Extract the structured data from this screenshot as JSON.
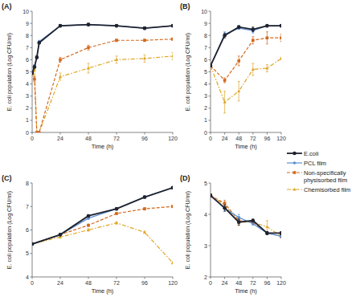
{
  "chart_data": [
    {
      "type": "line",
      "title": "(A)",
      "x_label": "Time (h)",
      "y_label": "E. coli population (Log CFU/ml)",
      "x": [
        0,
        2,
        4,
        6,
        24,
        48,
        72,
        96,
        120
      ],
      "xlim": [
        0,
        120
      ],
      "xticks": [
        0,
        24,
        48,
        72,
        96,
        120
      ],
      "ylim": [
        0,
        10
      ],
      "yticks": [
        0,
        1,
        2,
        3,
        4,
        5,
        6,
        7,
        8,
        9,
        10
      ],
      "grid": false,
      "series": [
        {
          "name": "E.coli",
          "color": "#1f2330",
          "marker": "circle",
          "line_style": "solid",
          "values": [
            4.9,
            5.4,
            6.2,
            7.4,
            8.8,
            8.9,
            8.8,
            8.6,
            8.8
          ],
          "errors": [
            0.1,
            0.1,
            0.1,
            0.1,
            0.1,
            0.1,
            0.1,
            0.1,
            0.1
          ]
        },
        {
          "name": "PCL film",
          "color": "#5b8fd1",
          "marker": "circle",
          "line_style": "solid",
          "values": [
            4.9,
            5.5,
            6.2,
            7.5,
            8.8,
            8.9,
            8.8,
            8.6,
            8.8
          ],
          "errors": [
            0.1,
            0.1,
            0.1,
            0.1,
            0.1,
            0.1,
            0.1,
            0.1,
            0.1
          ]
        },
        {
          "name": "Non-specifically physisorbed film",
          "color": "#d2691e",
          "marker": "square",
          "line_style": "dashed",
          "values": [
            4.9,
            4.4,
            0,
            0,
            6.0,
            7.0,
            7.6,
            7.6,
            7.7
          ],
          "errors": [
            0.1,
            0.2,
            0,
            0,
            0.2,
            0.2,
            0.1,
            0.1,
            0.1
          ]
        },
        {
          "name": "Chemisorbed film",
          "color": "#e0a526",
          "marker": "triangle",
          "line_style": "dashdot",
          "values": [
            4.9,
            5.2,
            0,
            0,
            4.6,
            5.3,
            6.0,
            6.1,
            6.3
          ],
          "errors": [
            0.1,
            0.2,
            0,
            0,
            0.3,
            0.4,
            0.3,
            0.3,
            0.3
          ]
        }
      ]
    },
    {
      "type": "line",
      "title": "(B)",
      "x_label": "Time (h)",
      "y_label": "E. coli population (Log CFU/ml)",
      "x": [
        0,
        24,
        48,
        72,
        96,
        120
      ],
      "xlim": [
        0,
        120
      ],
      "xticks": [
        0,
        24,
        48,
        72,
        96,
        120
      ],
      "ylim": [
        0,
        10
      ],
      "yticks": [
        0,
        1,
        2,
        3,
        4,
        5,
        6,
        7,
        8,
        9,
        10
      ],
      "grid": false,
      "legend": "right",
      "series": [
        {
          "name": "E.coli",
          "color": "#1f2330",
          "marker": "circle",
          "line_style": "solid",
          "values": [
            5.5,
            8.0,
            8.7,
            8.5,
            8.8,
            8.8
          ],
          "errors": [
            0.1,
            0.2,
            0.1,
            0.2,
            0.1,
            0.1
          ]
        },
        {
          "name": "PCL film",
          "color": "#5b8fd1",
          "marker": "circle",
          "line_style": "solid",
          "values": [
            5.5,
            8.1,
            8.6,
            8.4,
            8.8,
            8.8
          ],
          "errors": [
            0.1,
            0.2,
            0.1,
            0.2,
            0.1,
            0.1
          ]
        },
        {
          "name": "Non-specifically physisorbed film",
          "color": "#d2691e",
          "marker": "square",
          "line_style": "dashed",
          "values": [
            5.5,
            4.3,
            5.9,
            7.6,
            7.8,
            7.8
          ],
          "errors": [
            0.1,
            0.2,
            0.4,
            0.3,
            0.5,
            0.3
          ]
        },
        {
          "name": "Chemisorbed film",
          "color": "#e0a526",
          "marker": "triangle",
          "line_style": "dashdot",
          "values": [
            5.5,
            2.5,
            3.4,
            5.2,
            5.3,
            6.1
          ],
          "errors": [
            0.3,
            0.9,
            0.8,
            0.5,
            0.3,
            0.1
          ]
        }
      ]
    },
    {
      "type": "line",
      "title": "(C)",
      "x_label": "Time (h)",
      "y_label": "E. coli population (Log CFU/ml)",
      "x": [
        0,
        24,
        48,
        72,
        96,
        120
      ],
      "xlim": [
        0,
        120
      ],
      "xticks": [
        0,
        24,
        48,
        72,
        96,
        120
      ],
      "ylim": [
        4,
        8
      ],
      "yticks": [
        4,
        5,
        6,
        7,
        8
      ],
      "grid": false,
      "series": [
        {
          "name": "E.coli",
          "color": "#1f2330",
          "marker": "circle",
          "line_style": "solid",
          "values": [
            5.4,
            5.8,
            6.6,
            6.9,
            7.4,
            7.8
          ],
          "errors": [
            0.05,
            0.05,
            0.05,
            0.05,
            0.05,
            0.05
          ]
        },
        {
          "name": "PCL film",
          "color": "#5b8fd1",
          "marker": "circle",
          "line_style": "solid",
          "values": [
            5.4,
            5.8,
            6.5,
            6.9,
            7.4,
            7.8
          ],
          "errors": [
            0.05,
            0.05,
            0.05,
            0.05,
            0.05,
            0.05
          ]
        },
        {
          "name": "Non-specifically physisorbed film",
          "color": "#d2691e",
          "marker": "square",
          "line_style": "dashed",
          "values": [
            5.4,
            5.8,
            6.2,
            6.7,
            6.9,
            7.0
          ],
          "errors": [
            0.05,
            0.05,
            0.05,
            0.05,
            0.05,
            0.05
          ]
        },
        {
          "name": "Chemisorbed film",
          "color": "#e0a526",
          "marker": "triangle",
          "line_style": "dashdot",
          "values": [
            5.4,
            5.7,
            6.0,
            6.3,
            5.9,
            4.6
          ],
          "errors": [
            0.05,
            0.05,
            0.05,
            0.05,
            0.05,
            0.05
          ]
        }
      ]
    },
    {
      "type": "line",
      "title": "(D)",
      "x_label": "Time (h)",
      "y_label": "E. coli population (Log CFU/ml)",
      "x": [
        0,
        24,
        48,
        72,
        96,
        120
      ],
      "xlim": [
        0,
        120
      ],
      "xticks": [
        0,
        24,
        48,
        72,
        96,
        120
      ],
      "ylim": [
        2,
        5
      ],
      "yticks": [
        2,
        3,
        4,
        5
      ],
      "grid": false,
      "series": [
        {
          "name": "E.coli",
          "color": "#1f2330",
          "marker": "circle",
          "line_style": "solid",
          "values": [
            4.6,
            4.2,
            3.75,
            3.8,
            3.4,
            3.4
          ],
          "errors": [
            0.05,
            0.1,
            0.1,
            0.05,
            0.05,
            0.05
          ]
        },
        {
          "name": "PCL film",
          "color": "#5b8fd1",
          "marker": "circle",
          "line_style": "solid",
          "values": [
            4.6,
            4.2,
            3.9,
            3.7,
            3.4,
            3.3
          ],
          "errors": [
            0.05,
            0.1,
            0.1,
            0.05,
            0.05,
            0.05
          ]
        },
        {
          "name": "Non-specifically physisorbed film",
          "color": "#d2691e",
          "marker": "square",
          "line_style": "dashed",
          "values": [
            4.6,
            4.35,
            3.8,
            3.75,
            3.4,
            3.3
          ],
          "errors": [
            0.05,
            0.1,
            0.1,
            0.05,
            0.05,
            0.05
          ]
        },
        {
          "name": "Chemisorbed film",
          "color": "#e0a526",
          "marker": "triangle",
          "line_style": "dashdot",
          "values": [
            4.6,
            4.3,
            3.75,
            3.75,
            3.6,
            3.3
          ],
          "errors": [
            0.05,
            0.1,
            0.1,
            0.05,
            0.2,
            0.05
          ]
        }
      ]
    }
  ]
}
